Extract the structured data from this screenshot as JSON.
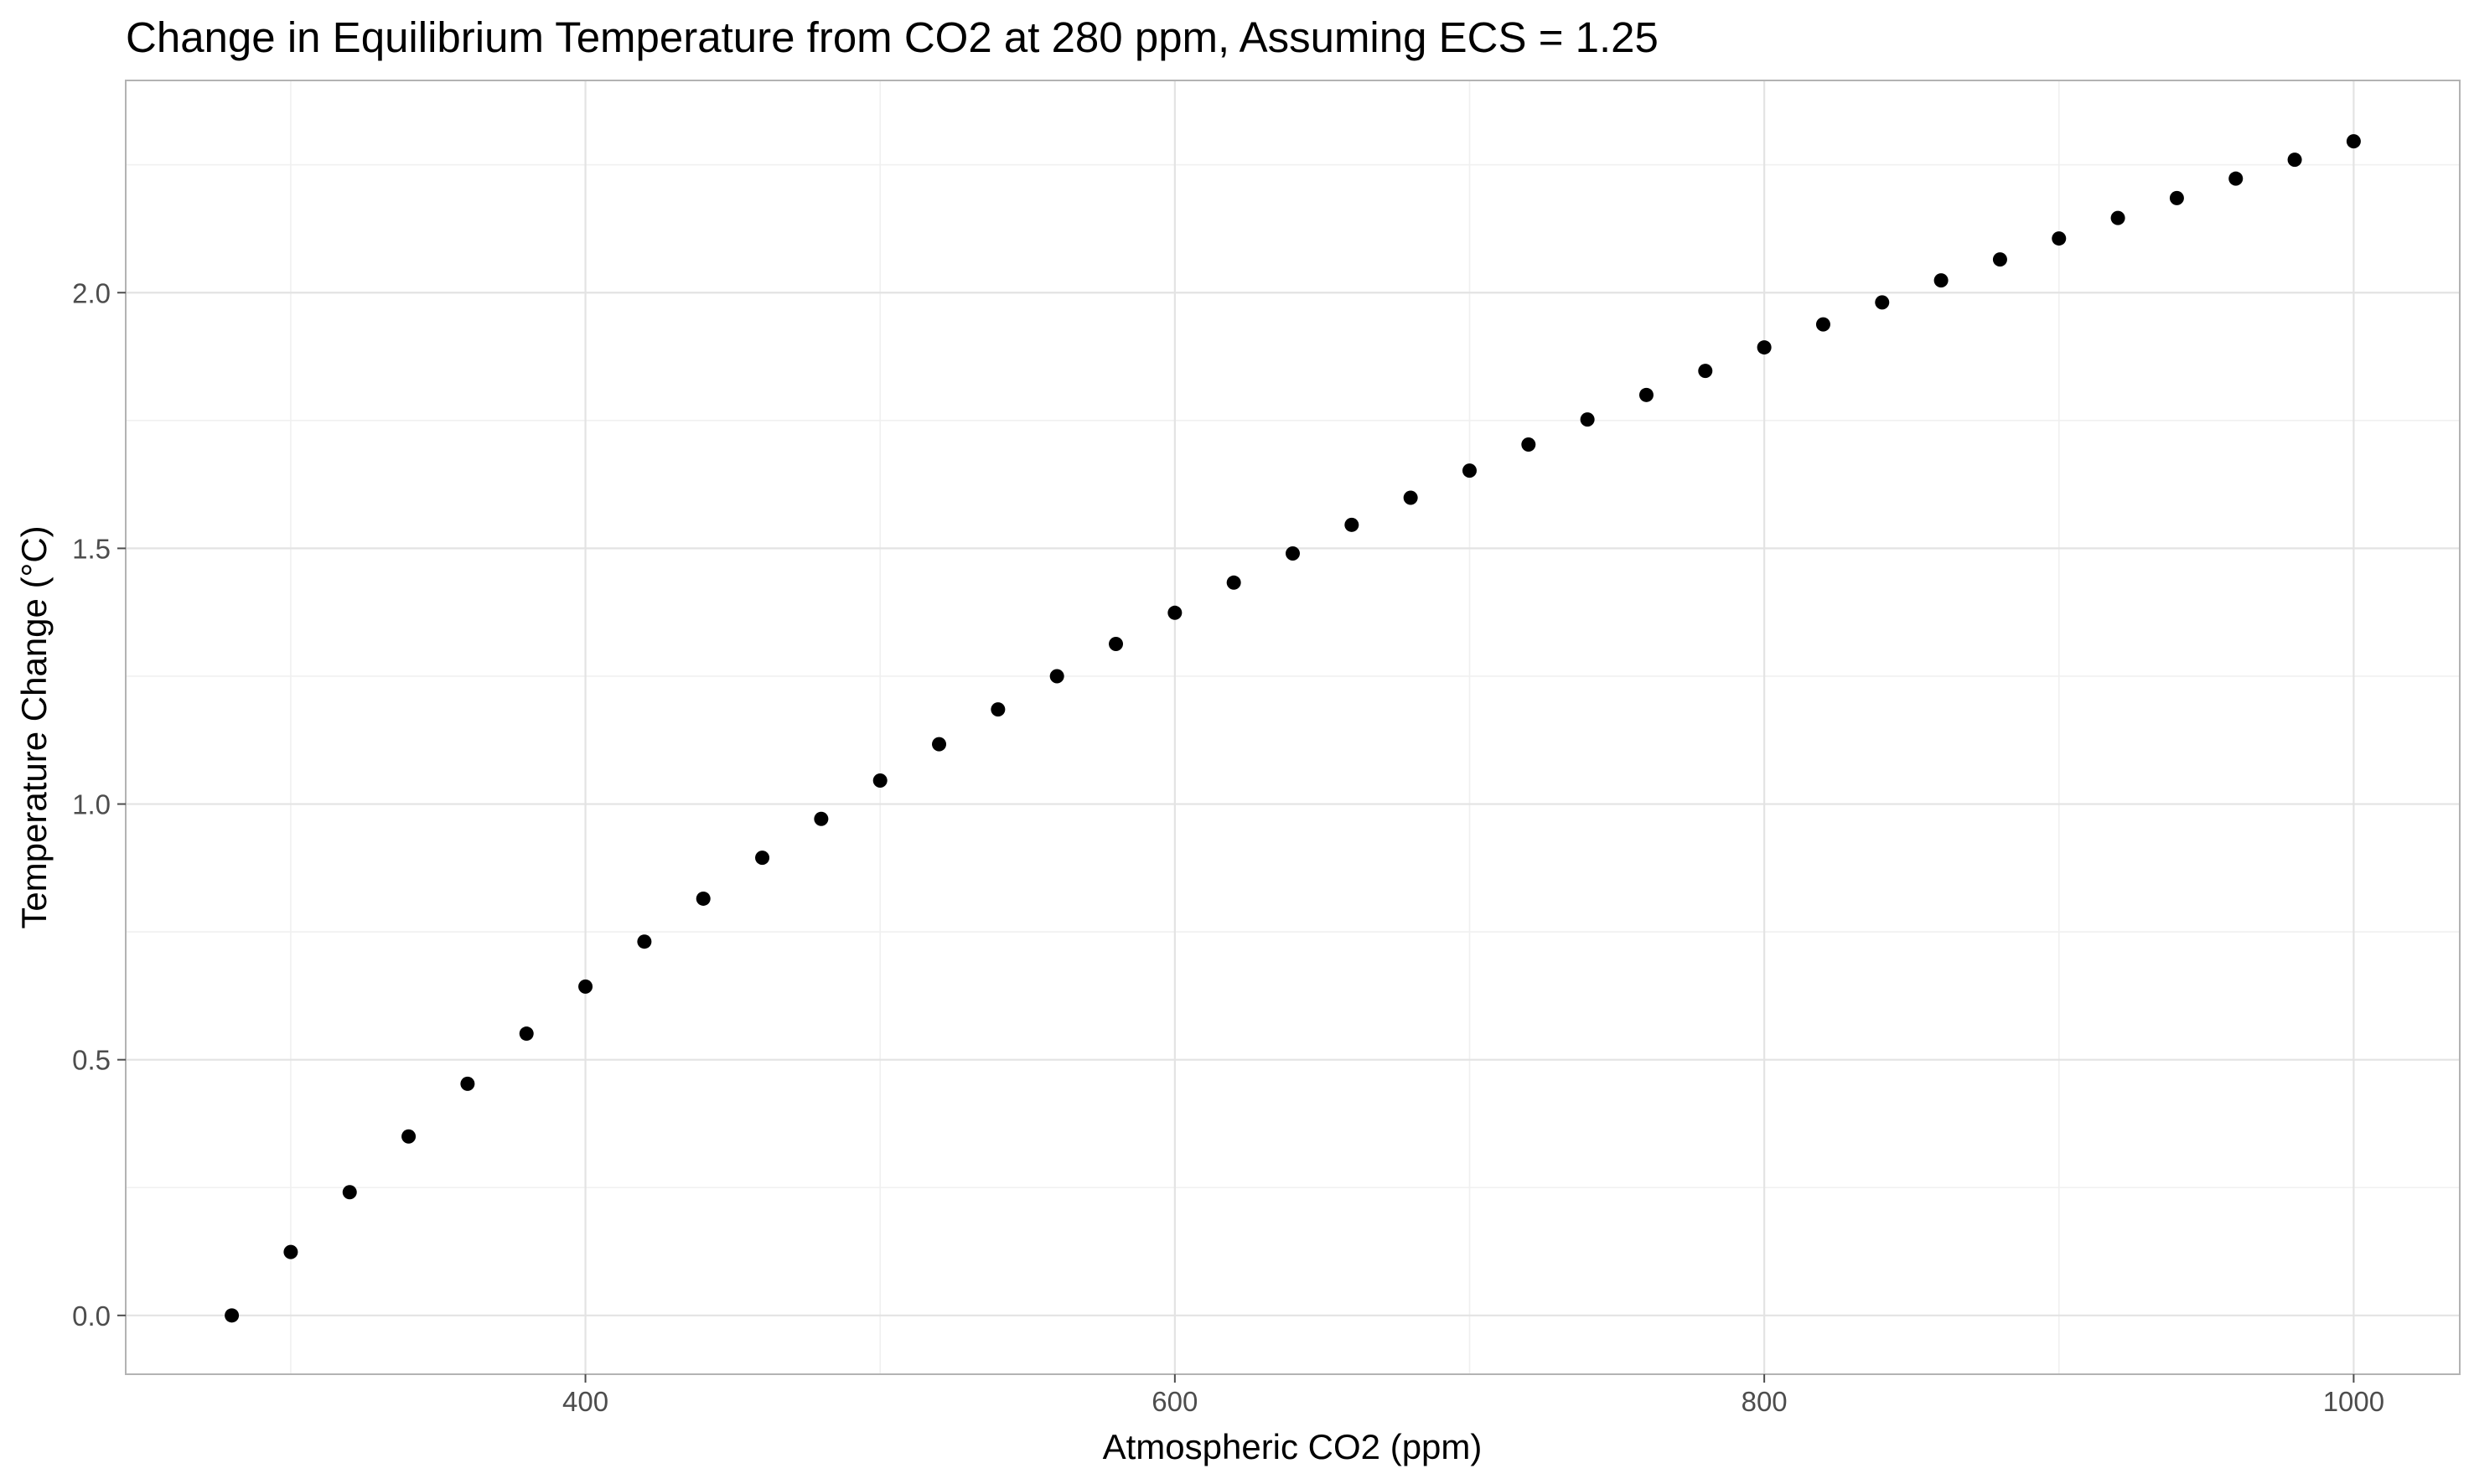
{
  "chart_data": {
    "type": "scatter",
    "title": "Change in Equilibrium Temperature from CO2 at 280 ppm, Assuming ECS = 1.25",
    "xlabel": "Atmospheric CO2 (ppm)",
    "ylabel": "Temperature Change (°C)",
    "xlim": [
      244,
      1036
    ],
    "ylim": [
      -0.115,
      2.415
    ],
    "x_ticks": [
      400,
      600,
      800,
      1000
    ],
    "x_tick_labels": [
      "400",
      "600",
      "800",
      "1000"
    ],
    "y_ticks": [
      0.0,
      0.5,
      1.0,
      1.5,
      2.0
    ],
    "y_tick_labels": [
      "0.0",
      "0.5",
      "1.0",
      "1.5",
      "2.0"
    ],
    "grid": true,
    "point_color": "#000000",
    "points": [
      {
        "x": 280,
        "y": 0.0
      },
      {
        "x": 300,
        "y": 0.124
      },
      {
        "x": 320,
        "y": 0.241
      },
      {
        "x": 340,
        "y": 0.35
      },
      {
        "x": 360,
        "y": 0.453
      },
      {
        "x": 380,
        "y": 0.551
      },
      {
        "x": 400,
        "y": 0.643
      },
      {
        "x": 420,
        "y": 0.731
      },
      {
        "x": 440,
        "y": 0.815
      },
      {
        "x": 460,
        "y": 0.895
      },
      {
        "x": 480,
        "y": 0.971
      },
      {
        "x": 500,
        "y": 1.046
      },
      {
        "x": 520,
        "y": 1.117
      },
      {
        "x": 540,
        "y": 1.185
      },
      {
        "x": 560,
        "y": 1.25
      },
      {
        "x": 580,
        "y": 1.313
      },
      {
        "x": 600,
        "y": 1.374
      },
      {
        "x": 620,
        "y": 1.433
      },
      {
        "x": 640,
        "y": 1.49
      },
      {
        "x": 660,
        "y": 1.546
      },
      {
        "x": 680,
        "y": 1.599
      },
      {
        "x": 700,
        "y": 1.652
      },
      {
        "x": 720,
        "y": 1.703
      },
      {
        "x": 740,
        "y": 1.752
      },
      {
        "x": 760,
        "y": 1.8
      },
      {
        "x": 780,
        "y": 1.847
      },
      {
        "x": 800,
        "y": 1.893
      },
      {
        "x": 820,
        "y": 1.938
      },
      {
        "x": 840,
        "y": 1.981
      },
      {
        "x": 860,
        "y": 2.024
      },
      {
        "x": 880,
        "y": 2.065
      },
      {
        "x": 900,
        "y": 2.106
      },
      {
        "x": 920,
        "y": 2.146
      },
      {
        "x": 940,
        "y": 2.185
      },
      {
        "x": 960,
        "y": 2.223
      },
      {
        "x": 980,
        "y": 2.26
      },
      {
        "x": 1000,
        "y": 2.296
      }
    ]
  }
}
